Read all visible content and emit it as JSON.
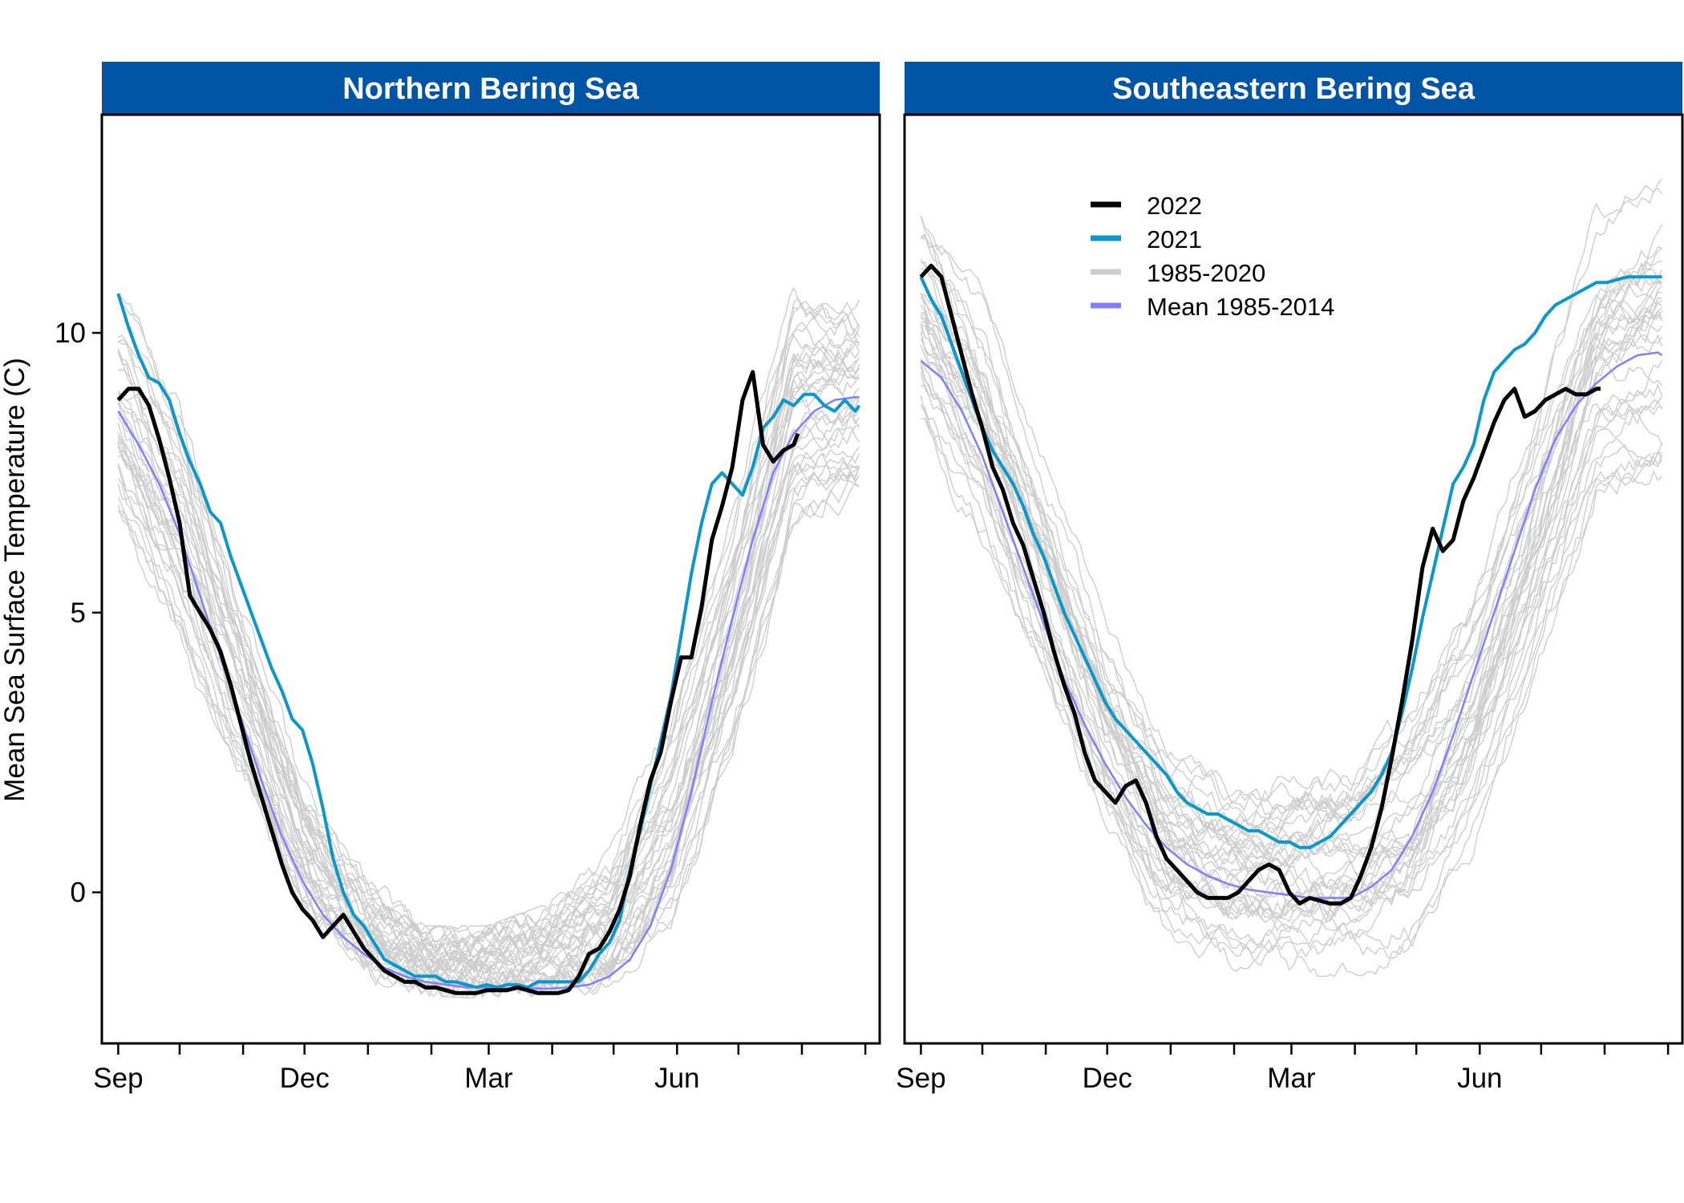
{
  "figure": {
    "ylabel": "Mean Sea Surface Temperature (C)",
    "xlabel": "",
    "title": ""
  },
  "legend": {
    "placement": "inside top of right panel",
    "entries": [
      {
        "label": "2022",
        "color": "#000000"
      },
      {
        "label": "2021",
        "color": "#0a97cc"
      },
      {
        "label": "1985-2020",
        "color": "#cdcdcd"
      },
      {
        "label": "Mean 1985-2014",
        "color": "#8080ff"
      }
    ]
  },
  "colors": {
    "strip_background": "#0054a6",
    "strip_text": "#ffffff",
    "panel_border": "#000000"
  },
  "chart_data": [
    {
      "type": "line",
      "panel_title": "Northern Bering Sea",
      "xlabel": "",
      "ylabel": "Mean Sea Surface Temperature (C)",
      "x_unit": "days since Sep 1",
      "x_ticks": [
        {
          "label": "Sep",
          "x": 0
        },
        {
          "label": "Dec",
          "x": 91
        },
        {
          "label": "Mar",
          "x": 181
        },
        {
          "label": "Jun",
          "x": 273
        }
      ],
      "minor_tick_months": [
        0,
        30,
        61,
        91,
        122,
        153,
        181,
        212,
        242,
        273,
        303,
        334,
        365
      ],
      "y_ticks": [
        0,
        5,
        10
      ],
      "xlim": [
        -8,
        372
      ],
      "ylim": [
        -2.7,
        13.9
      ],
      "grid": false,
      "series": [
        {
          "name": "2022",
          "color": "#000000",
          "x": [
            0,
            5,
            10,
            15,
            20,
            25,
            30,
            35,
            40,
            45,
            50,
            55,
            60,
            65,
            70,
            75,
            80,
            85,
            90,
            95,
            100,
            105,
            110,
            115,
            120,
            125,
            130,
            135,
            140,
            145,
            150,
            155,
            160,
            165,
            170,
            175,
            180,
            185,
            190,
            195,
            200,
            205,
            210,
            215,
            220,
            225,
            230,
            235,
            240,
            245,
            250,
            255,
            260,
            265,
            270,
            275,
            280,
            285,
            290,
            295,
            300,
            305,
            310,
            315,
            320,
            325,
            330,
            332
          ],
          "y": [
            8.8,
            9.0,
            9.0,
            8.7,
            8.1,
            7.4,
            6.6,
            5.3,
            5.0,
            4.7,
            4.3,
            3.7,
            3.0,
            2.3,
            1.7,
            1.1,
            0.5,
            0.0,
            -0.3,
            -0.5,
            -0.8,
            -0.6,
            -0.4,
            -0.7,
            -1.0,
            -1.2,
            -1.4,
            -1.5,
            -1.6,
            -1.6,
            -1.7,
            -1.7,
            -1.75,
            -1.8,
            -1.8,
            -1.8,
            -1.75,
            -1.75,
            -1.75,
            -1.7,
            -1.75,
            -1.8,
            -1.8,
            -1.8,
            -1.75,
            -1.5,
            -1.1,
            -1.0,
            -0.7,
            -0.3,
            0.3,
            1.2,
            2.0,
            2.5,
            3.4,
            4.2,
            4.2,
            5.1,
            6.3,
            6.9,
            7.6,
            8.8,
            9.3,
            8.0,
            7.7,
            7.9,
            8.0,
            8.2
          ]
        },
        {
          "name": "2021",
          "color": "#0a97cc",
          "x": [
            0,
            5,
            10,
            15,
            20,
            25,
            30,
            35,
            40,
            45,
            50,
            55,
            60,
            65,
            70,
            75,
            80,
            85,
            90,
            95,
            100,
            105,
            110,
            115,
            120,
            125,
            130,
            135,
            140,
            145,
            150,
            155,
            160,
            165,
            170,
            175,
            180,
            185,
            190,
            195,
            200,
            205,
            210,
            215,
            220,
            225,
            230,
            235,
            240,
            245,
            250,
            255,
            260,
            265,
            270,
            275,
            280,
            285,
            290,
            295,
            300,
            305,
            310,
            315,
            320,
            325,
            330,
            335,
            340,
            345,
            350,
            355,
            360,
            362
          ],
          "y": [
            10.7,
            10.1,
            9.6,
            9.2,
            9.1,
            8.8,
            8.2,
            7.7,
            7.3,
            6.8,
            6.6,
            6.0,
            5.5,
            5.0,
            4.5,
            4.0,
            3.6,
            3.1,
            2.9,
            2.3,
            1.5,
            0.6,
            0.0,
            -0.4,
            -0.6,
            -0.9,
            -1.2,
            -1.3,
            -1.4,
            -1.5,
            -1.5,
            -1.5,
            -1.6,
            -1.6,
            -1.65,
            -1.7,
            -1.65,
            -1.7,
            -1.65,
            -1.65,
            -1.7,
            -1.6,
            -1.6,
            -1.6,
            -1.6,
            -1.6,
            -1.4,
            -1.1,
            -0.9,
            -0.5,
            0.4,
            1.1,
            1.9,
            2.7,
            3.5,
            4.6,
            5.7,
            6.6,
            7.3,
            7.5,
            7.3,
            7.1,
            7.6,
            8.3,
            8.5,
            8.8,
            8.7,
            8.9,
            8.9,
            8.7,
            8.6,
            8.8,
            8.6,
            8.7
          ]
        },
        {
          "name": "Mean 1985-2014",
          "color": "#8080ff",
          "x": [
            0,
            10,
            20,
            30,
            40,
            50,
            60,
            70,
            80,
            90,
            100,
            110,
            120,
            130,
            140,
            150,
            160,
            170,
            180,
            190,
            200,
            210,
            220,
            230,
            240,
            250,
            260,
            270,
            280,
            290,
            300,
            310,
            320,
            330,
            340,
            350,
            360,
            362
          ],
          "y": [
            8.6,
            8.0,
            7.3,
            6.4,
            5.3,
            4.2,
            3.1,
            2.0,
            1.0,
            0.2,
            -0.4,
            -0.8,
            -1.1,
            -1.35,
            -1.5,
            -1.6,
            -1.65,
            -1.7,
            -1.7,
            -1.72,
            -1.72,
            -1.72,
            -1.7,
            -1.65,
            -1.5,
            -1.2,
            -0.6,
            0.4,
            1.8,
            3.4,
            4.9,
            6.3,
            7.5,
            8.2,
            8.6,
            8.8,
            8.85,
            8.85
          ]
        }
      ],
      "background_years_range": "1985-2020",
      "background_envelope": {
        "x": [
          0,
          30,
          60,
          90,
          120,
          150,
          180,
          210,
          240,
          270,
          300,
          330,
          360
        ],
        "y_low": [
          6.2,
          4.0,
          1.5,
          -0.6,
          -1.6,
          -1.85,
          -1.9,
          -1.9,
          -1.9,
          -1.0,
          2.0,
          5.8,
          6.4
        ],
        "y_high": [
          11.3,
          9.5,
          6.0,
          2.5,
          0.5,
          -0.6,
          -0.6,
          -0.2,
          0.8,
          3.5,
          7.5,
          12.0,
          11.6
        ]
      }
    },
    {
      "type": "line",
      "panel_title": "Southeastern Bering Sea",
      "xlabel": "",
      "ylabel": "",
      "x_unit": "days since Sep 1",
      "x_ticks": [
        {
          "label": "Sep",
          "x": 0
        },
        {
          "label": "Dec",
          "x": 91
        },
        {
          "label": "Mar",
          "x": 181
        },
        {
          "label": "Jun",
          "x": 273
        }
      ],
      "minor_tick_months": [
        0,
        30,
        61,
        91,
        122,
        153,
        181,
        212,
        242,
        273,
        303,
        334,
        365
      ],
      "y_ticks": [
        0,
        5,
        10
      ],
      "xlim": [
        -8,
        372
      ],
      "ylim": [
        -2.7,
        13.9
      ],
      "grid": false,
      "series": [
        {
          "name": "2022",
          "color": "#000000",
          "x": [
            0,
            5,
            10,
            15,
            20,
            25,
            30,
            35,
            40,
            45,
            50,
            55,
            60,
            65,
            70,
            75,
            80,
            85,
            90,
            95,
            100,
            105,
            110,
            115,
            120,
            125,
            130,
            135,
            140,
            145,
            150,
            155,
            160,
            165,
            170,
            175,
            180,
            185,
            190,
            195,
            200,
            205,
            210,
            215,
            220,
            225,
            230,
            235,
            240,
            245,
            250,
            255,
            260,
            265,
            270,
            275,
            280,
            285,
            290,
            295,
            300,
            305,
            310,
            315,
            320,
            325,
            330,
            332
          ],
          "y": [
            11.0,
            11.2,
            11.0,
            10.3,
            9.6,
            8.9,
            8.3,
            7.6,
            7.2,
            6.6,
            6.2,
            5.6,
            5.0,
            4.3,
            3.7,
            3.2,
            2.5,
            2.0,
            1.8,
            1.6,
            1.9,
            2.0,
            1.6,
            1.0,
            0.6,
            0.4,
            0.2,
            0.0,
            -0.1,
            -0.1,
            -0.1,
            0.0,
            0.2,
            0.4,
            0.5,
            0.4,
            0.0,
            -0.2,
            -0.1,
            -0.15,
            -0.2,
            -0.2,
            -0.1,
            0.3,
            0.8,
            1.5,
            2.4,
            3.4,
            4.5,
            5.8,
            6.5,
            6.1,
            6.3,
            7.0,
            7.4,
            7.9,
            8.4,
            8.8,
            9.0,
            8.5,
            8.6,
            8.8,
            8.9,
            9.0,
            8.9,
            8.9,
            9.0,
            9.0
          ]
        },
        {
          "name": "2021",
          "color": "#0a97cc",
          "x": [
            0,
            5,
            10,
            15,
            20,
            25,
            30,
            35,
            40,
            45,
            50,
            55,
            60,
            65,
            70,
            75,
            80,
            85,
            90,
            95,
            100,
            105,
            110,
            115,
            120,
            125,
            130,
            135,
            140,
            145,
            150,
            155,
            160,
            165,
            170,
            175,
            180,
            185,
            190,
            195,
            200,
            205,
            210,
            215,
            220,
            225,
            230,
            235,
            240,
            245,
            250,
            255,
            260,
            265,
            270,
            275,
            280,
            285,
            290,
            295,
            300,
            305,
            310,
            315,
            320,
            325,
            330,
            335,
            340,
            345,
            350,
            355,
            360,
            362
          ],
          "y": [
            11.0,
            10.6,
            10.3,
            9.8,
            9.3,
            8.8,
            8.3,
            7.9,
            7.6,
            7.3,
            6.9,
            6.4,
            6.0,
            5.5,
            5.0,
            4.6,
            4.2,
            3.8,
            3.4,
            3.1,
            2.9,
            2.7,
            2.5,
            2.3,
            2.1,
            1.8,
            1.6,
            1.5,
            1.4,
            1.4,
            1.3,
            1.2,
            1.1,
            1.1,
            1.0,
            0.9,
            0.9,
            0.8,
            0.8,
            0.9,
            1.0,
            1.2,
            1.4,
            1.6,
            1.8,
            2.1,
            2.5,
            3.2,
            4.0,
            4.9,
            5.7,
            6.5,
            7.3,
            7.6,
            8.0,
            8.8,
            9.3,
            9.5,
            9.7,
            9.8,
            10.0,
            10.3,
            10.5,
            10.6,
            10.7,
            10.8,
            10.9,
            10.9,
            10.95,
            11.0,
            11.0,
            11.0,
            11.0,
            11.0
          ]
        },
        {
          "name": "Mean 1985-2014",
          "color": "#8080ff",
          "x": [
            0,
            10,
            20,
            30,
            40,
            50,
            60,
            70,
            80,
            90,
            100,
            110,
            120,
            130,
            140,
            150,
            160,
            170,
            180,
            190,
            200,
            210,
            220,
            230,
            240,
            250,
            260,
            270,
            280,
            290,
            300,
            310,
            320,
            330,
            340,
            350,
            360,
            362
          ],
          "y": [
            9.5,
            9.2,
            8.6,
            7.8,
            6.8,
            5.8,
            4.8,
            3.8,
            3.0,
            2.3,
            1.7,
            1.2,
            0.8,
            0.5,
            0.3,
            0.15,
            0.05,
            0.0,
            -0.05,
            -0.1,
            -0.1,
            -0.1,
            0.1,
            0.4,
            1.0,
            1.8,
            2.8,
            3.9,
            5.0,
            6.1,
            7.2,
            8.1,
            8.7,
            9.1,
            9.4,
            9.6,
            9.65,
            9.6
          ]
        }
      ],
      "background_years_range": "1985-2020",
      "background_envelope": {
        "x": [
          0,
          30,
          60,
          90,
          120,
          150,
          180,
          210,
          240,
          270,
          300,
          330,
          360
        ],
        "y_low": [
          8.0,
          6.0,
          3.5,
          1.0,
          -0.9,
          -1.4,
          -1.5,
          -1.5,
          -1.4,
          0.5,
          3.5,
          6.5,
          6.8
        ],
        "y_high": [
          12.7,
          11.0,
          8.0,
          5.0,
          3.0,
          2.2,
          2.5,
          2.7,
          4.0,
          6.0,
          9.0,
          12.5,
          13.4
        ]
      }
    }
  ]
}
